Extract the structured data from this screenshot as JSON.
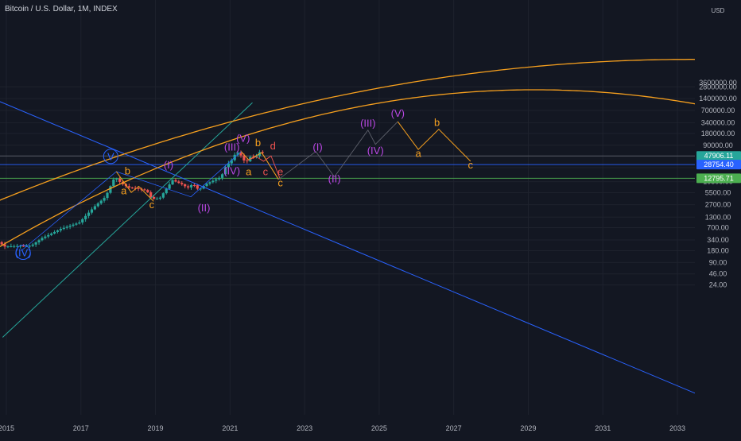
{
  "header": {
    "title": "Bitcoin / U.S. Dollar, 1M, INDEX"
  },
  "colors": {
    "background": "#131722",
    "grid": "#1e222d",
    "axis_text": "#b2b5be",
    "candle_up": "#26a69a",
    "candle_down": "#ef5350",
    "orange": "#f7a01e",
    "blue": "#2962ff",
    "teal": "#26a69a",
    "purple": "#ba47e4",
    "red": "#ef5350",
    "green_line": "#4caf50",
    "projection": "#5d606b"
  },
  "chart_data": {
    "type": "candlestick",
    "scale": "log",
    "currency_label": "USD",
    "y_tick_labels": [
      "3600000.00",
      "2800000.00",
      "1400000.00",
      "700000.00",
      "340000.00",
      "180000.00",
      "90000.00",
      "47906.11",
      "28754.40",
      "12795.71",
      "10500.00",
      "5500.00",
      "2700.00",
      "1300.00",
      "700.00",
      "340.00",
      "180.00",
      "90.00",
      "46.00",
      "24.00"
    ],
    "x_tick_labels": [
      "2015",
      "2017",
      "2019",
      "2021",
      "2023",
      "2025",
      "2027",
      "2029",
      "2031",
      "2033"
    ],
    "price_labels": [
      {
        "value": "47906.11",
        "sub": "29d 7h",
        "color": "#26a69a"
      },
      {
        "value": "28754.40",
        "color": "#2962ff"
      },
      {
        "value": "12795.71",
        "color": "#4caf50"
      }
    ],
    "horizontal_levels": [
      {
        "price": 47906.11,
        "color": "#5d606b"
      },
      {
        "price": 28754.4,
        "color": "#2962ff"
      },
      {
        "price": 12795.71,
        "color": "#4caf50"
      }
    ],
    "wave_labels": [
      {
        "text": "(IV)",
        "t": 2015.45,
        "price": 130,
        "color": "#2962ff",
        "circled": true
      },
      {
        "text": "V",
        "t": 2017.8,
        "price": 37000,
        "color": "#2962ff",
        "circled": true
      },
      {
        "text": "b",
        "t": 2018.25,
        "price": 16000,
        "color": "#f7a01e"
      },
      {
        "text": "a",
        "t": 2018.15,
        "price": 5000,
        "color": "#f7a01e"
      },
      {
        "text": "c",
        "t": 2018.9,
        "price": 2200,
        "color": "#f7a01e"
      },
      {
        "text": "(I)",
        "t": 2019.35,
        "price": 23000,
        "color": "#ba47e4"
      },
      {
        "text": "(II)",
        "t": 2020.3,
        "price": 1850,
        "color": "#ba47e4"
      },
      {
        "text": "(IV)",
        "t": 2021.05,
        "price": 16000,
        "color": "#ba47e4"
      },
      {
        "text": "(III)",
        "t": 2021.05,
        "price": 65000,
        "color": "#ba47e4"
      },
      {
        "text": "(V)",
        "t": 2021.35,
        "price": 110000,
        "color": "#ba47e4"
      },
      {
        "text": "b",
        "t": 2021.75,
        "price": 85000,
        "color": "#f7a01e"
      },
      {
        "text": "d",
        "t": 2022.15,
        "price": 70000,
        "color": "#ef5350"
      },
      {
        "text": "a",
        "t": 2021.5,
        "price": 15500,
        "color": "#f7a01e"
      },
      {
        "text": "c",
        "t": 2021.95,
        "price": 15500,
        "color": "#ef5350"
      },
      {
        "text": "e",
        "t": 2022.35,
        "price": 15500,
        "color": "#ef5350"
      },
      {
        "text": "c",
        "t": 2022.35,
        "price": 8000,
        "color": "#f7a01e"
      },
      {
        "text": "(I)",
        "t": 2023.35,
        "price": 65000,
        "color": "#ba47e4"
      },
      {
        "text": "(II)",
        "t": 2023.8,
        "price": 10000,
        "color": "#ba47e4"
      },
      {
        "text": "(III)",
        "t": 2024.7,
        "price": 270000,
        "color": "#ba47e4"
      },
      {
        "text": "(IV)",
        "t": 2024.9,
        "price": 53000,
        "color": "#ba47e4"
      },
      {
        "text": "(V)",
        "t": 2025.5,
        "price": 480000,
        "color": "#ba47e4"
      },
      {
        "text": "b",
        "t": 2026.55,
        "price": 280000,
        "color": "#f7a01e"
      },
      {
        "text": "a",
        "t": 2026.05,
        "price": 45000,
        "color": "#f7a01e"
      },
      {
        "text": "c",
        "t": 2027.45,
        "price": 23000,
        "color": "#f7a01e"
      }
    ]
  }
}
